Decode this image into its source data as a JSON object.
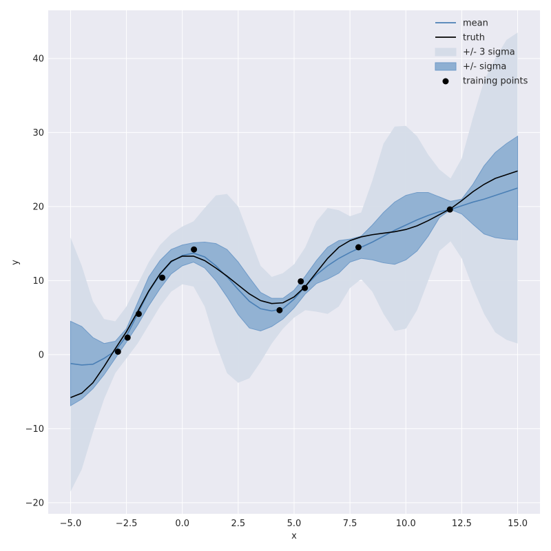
{
  "chart_data": {
    "type": "line",
    "xlabel": "x",
    "ylabel": "y",
    "xlim": [
      -6.0,
      16.0
    ],
    "ylim": [
      -21.5,
      46.5
    ],
    "xticks": [
      -5.0,
      -2.5,
      0.0,
      2.5,
      5.0,
      7.5,
      10.0,
      12.5,
      15.0
    ],
    "xtick_labels": [
      "−5.0",
      "−2.5",
      "0.0",
      "2.5",
      "5.0",
      "7.5",
      "10.0",
      "12.5",
      "15.0"
    ],
    "yticks": [
      -20,
      -10,
      0,
      10,
      20,
      30,
      40
    ],
    "ytick_labels": [
      "−20",
      "−10",
      "0",
      "10",
      "20",
      "30",
      "40"
    ],
    "grid": true,
    "legend_position": "top-right",
    "legend": [
      {
        "label": "mean",
        "kind": "line",
        "color": "#4a7fb5"
      },
      {
        "label": "truth",
        "kind": "line",
        "color": "#000000"
      },
      {
        "label": "+/- 3 sigma",
        "kind": "band",
        "color": "#d5dce8"
      },
      {
        "label": "+/- sigma",
        "kind": "band",
        "color": "#8eafd2"
      },
      {
        "label": "training points",
        "kind": "point",
        "color": "#000000"
      }
    ],
    "colors": {
      "background": "#eaeaf2",
      "grid": "#ffffff",
      "mean": "#4a7fb5",
      "truth": "#000000",
      "band1": "#8eafd2",
      "band1_edge": "#6f9ac8",
      "band3": "#d5dce8",
      "points": "#000000"
    },
    "x": [
      -5.0,
      -4.5,
      -4.0,
      -3.5,
      -3.0,
      -2.5,
      -2.0,
      -1.5,
      -1.0,
      -0.5,
      0.0,
      0.5,
      1.0,
      1.5,
      2.0,
      2.5,
      3.0,
      3.5,
      4.0,
      4.5,
      5.0,
      5.5,
      6.0,
      6.5,
      7.0,
      7.5,
      8.0,
      8.5,
      9.0,
      9.5,
      10.0,
      10.5,
      11.0,
      11.5,
      12.0,
      12.5,
      13.0,
      13.5,
      14.0,
      14.5,
      15.0
    ],
    "series": [
      {
        "name": "mean",
        "values": [
          -1.2,
          -1.4,
          -1.3,
          -0.5,
          0.5,
          2.5,
          5.5,
          8.5,
          10.8,
          12.5,
          13.4,
          13.7,
          13.2,
          12.0,
          10.5,
          8.8,
          7.2,
          6.2,
          5.9,
          6.2,
          7.5,
          9.2,
          10.8,
          12.0,
          13.0,
          13.8,
          14.5,
          15.2,
          16.0,
          16.8,
          17.5,
          18.2,
          18.8,
          19.3,
          19.6,
          20.1,
          20.6,
          21.0,
          21.5,
          22.0,
          22.5
        ]
      },
      {
        "name": "truth",
        "values": [
          -5.8,
          -5.2,
          -3.8,
          -1.6,
          0.8,
          3.1,
          5.8,
          8.6,
          10.9,
          12.6,
          13.3,
          13.3,
          12.7,
          11.7,
          10.6,
          9.4,
          8.2,
          7.3,
          6.9,
          7.0,
          7.8,
          9.2,
          11.1,
          13.0,
          14.5,
          15.4,
          15.9,
          16.2,
          16.4,
          16.6,
          16.9,
          17.4,
          18.1,
          18.9,
          19.7,
          20.8,
          22.0,
          23.0,
          23.8,
          24.3,
          24.8
        ]
      },
      {
        "name": "+/- sigma",
        "lower": [
          -6.9,
          -6.0,
          -4.6,
          -2.7,
          -0.5,
          1.7,
          4.0,
          6.6,
          8.9,
          10.9,
          12.0,
          12.5,
          11.7,
          10.0,
          7.8,
          5.4,
          3.6,
          3.2,
          3.8,
          4.8,
          6.3,
          8.2,
          9.6,
          10.2,
          11.0,
          12.5,
          13.0,
          12.8,
          12.4,
          12.2,
          12.8,
          14.0,
          16.0,
          18.5,
          19.6,
          19.0,
          17.6,
          16.3,
          15.8,
          15.6,
          15.5
        ],
        "upper": [
          4.5,
          3.8,
          2.3,
          1.5,
          1.8,
          3.5,
          7.0,
          10.5,
          12.7,
          14.2,
          14.8,
          15.1,
          15.2,
          15.0,
          14.2,
          12.5,
          10.4,
          8.4,
          7.6,
          7.6,
          8.7,
          10.6,
          12.7,
          14.5,
          15.4,
          15.6,
          16.0,
          17.5,
          19.2,
          20.6,
          21.5,
          21.9,
          21.9,
          21.3,
          20.7,
          21.0,
          23.0,
          25.5,
          27.3,
          28.5,
          29.5
        ]
      },
      {
        "name": "+/- 3 sigma",
        "lower": [
          -18.5,
          -15.5,
          -10.5,
          -6.0,
          -2.5,
          -0.5,
          1.5,
          4.0,
          6.5,
          8.5,
          9.5,
          9.2,
          6.5,
          1.5,
          -2.5,
          -3.8,
          -3.2,
          -1.0,
          1.5,
          3.5,
          5.0,
          6.0,
          5.8,
          5.5,
          6.5,
          9.0,
          10.2,
          8.5,
          5.5,
          3.2,
          3.5,
          6.0,
          10.0,
          14.0,
          15.3,
          13.0,
          9.0,
          5.5,
          3.0,
          2.0,
          1.5
        ],
        "upper": [
          15.8,
          12.0,
          7.2,
          4.8,
          4.5,
          6.5,
          9.5,
          12.5,
          14.8,
          16.3,
          17.3,
          18.0,
          19.8,
          21.5,
          21.7,
          20.0,
          16.0,
          12.0,
          10.5,
          11.0,
          12.2,
          14.5,
          18.0,
          19.8,
          19.5,
          18.7,
          19.2,
          23.5,
          28.5,
          30.8,
          30.9,
          29.5,
          27.0,
          25.0,
          23.8,
          26.5,
          32.0,
          37.0,
          40.0,
          42.5,
          43.5
        ]
      }
    ],
    "training_points": [
      {
        "x": -2.88,
        "y": 0.4
      },
      {
        "x": -2.45,
        "y": 2.3
      },
      {
        "x": -1.95,
        "y": 5.5
      },
      {
        "x": -0.9,
        "y": 10.4
      },
      {
        "x": 0.52,
        "y": 14.2
      },
      {
        "x": 4.35,
        "y": 6.0
      },
      {
        "x": 5.3,
        "y": 9.9
      },
      {
        "x": 5.48,
        "y": 9.0
      },
      {
        "x": 7.88,
        "y": 14.5
      },
      {
        "x": 11.97,
        "y": 19.6
      }
    ]
  }
}
